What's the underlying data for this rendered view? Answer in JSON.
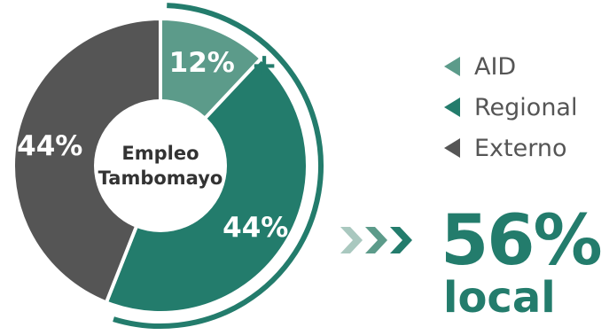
{
  "chart_data": {
    "type": "pie",
    "categories": [
      "AID",
      "Regional",
      "Externo"
    ],
    "values": [
      12,
      44,
      44
    ],
    "value_labels": [
      "12%",
      "44%",
      "44%"
    ],
    "center_label_lines": [
      "Empleo",
      "Tambomayo"
    ],
    "legend_position": "right",
    "colors": [
      "#5c9b8a",
      "#237c6c",
      "#555555"
    ],
    "highlight_symbol": "+",
    "highlight_color": "#237c6c"
  },
  "summary": {
    "value": "56%",
    "caption": "local",
    "arrow_colors": [
      "#a9c8bf",
      "#5c9b8a",
      "#237c6c"
    ]
  }
}
